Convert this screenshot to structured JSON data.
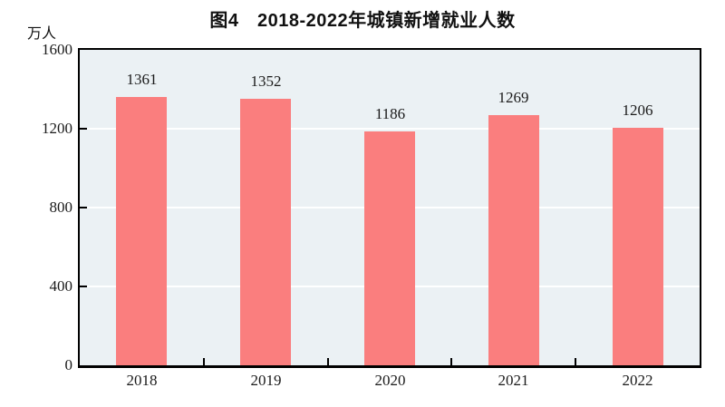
{
  "chart_data": {
    "type": "bar",
    "title": "图4　2018-2022年城镇新增就业人数",
    "unit_label": "万人",
    "categories": [
      "2018",
      "2019",
      "2020",
      "2021",
      "2022"
    ],
    "values": [
      1361,
      1352,
      1186,
      1269,
      1206
    ],
    "xlabel": "",
    "ylabel": "万人",
    "ylim": [
      0,
      1600
    ],
    "yticks": [
      0,
      400,
      800,
      1200,
      1600
    ],
    "grid": "horizontal",
    "legend": "none",
    "colors": {
      "bar": "#fa7e7e",
      "plot_background": "#ebf1f4",
      "gridline": "#ffffff",
      "axis": "#000000",
      "text": "#1a1a1a",
      "page_background": "#ffffff"
    }
  }
}
